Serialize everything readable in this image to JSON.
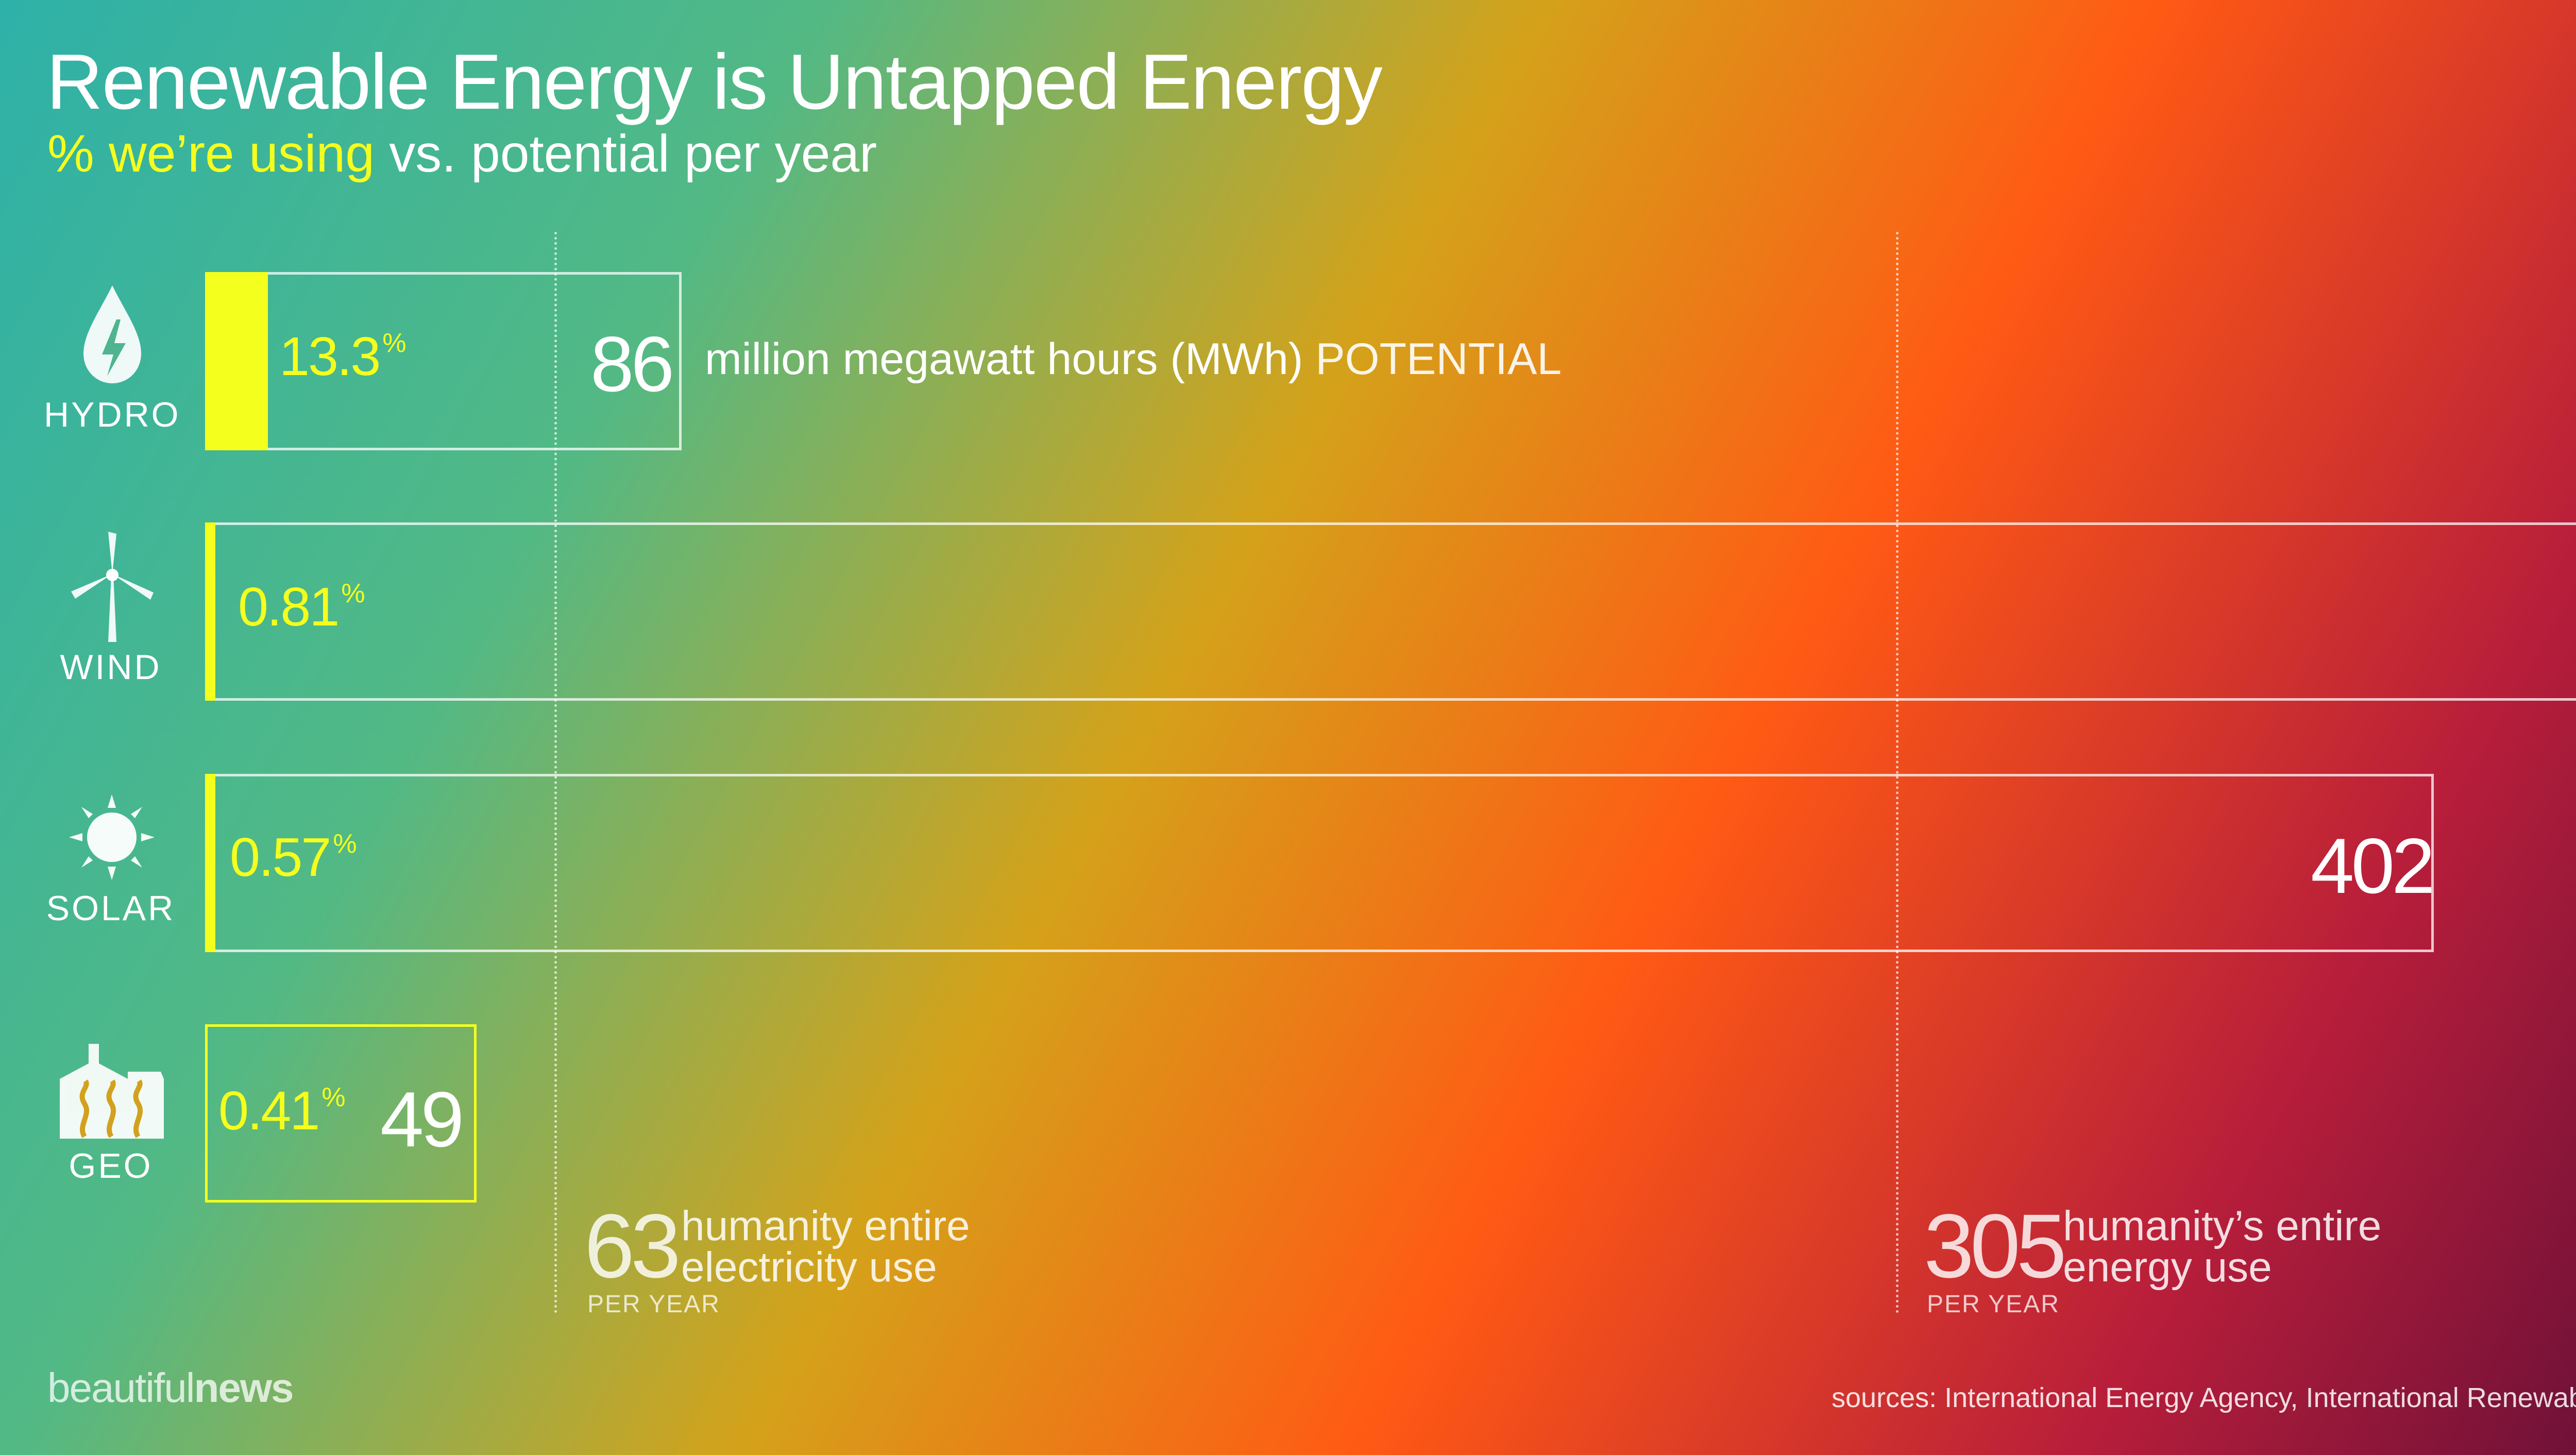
{
  "title": "Renewable Energy is Untapped Energy",
  "subtitle": {
    "highlight": "% we’re using",
    "rest": " vs. potential per year"
  },
  "colors": {
    "accent_yellow": "#f5ff1e",
    "bg_teal": "#2eb1a8",
    "bg_green": "#52b985",
    "bg_gold": "#d4a21a",
    "bg_orange": "#ff5a14",
    "bg_crimson": "#b81e3a",
    "bg_plum": "#6a1038"
  },
  "chart_data": {
    "type": "bar",
    "orientation": "horizontal",
    "unit_label": "million megawatt hours (MWh)",
    "unit_suffix": "POTENTIAL",
    "categories": [
      "HYDRO",
      "WIND",
      "SOLAR",
      "GEO"
    ],
    "icons": [
      "water-drop-bolt-icon",
      "wind-turbine-icon",
      "sun-icon",
      "geothermal-plant-icon"
    ],
    "series": [
      {
        "values": [
          86,
          null,
          402,
          49
        ],
        "value_labels": [
          "86",
          "",
          "402",
          "49"
        ]
      },
      {
        "values": [
          13.3,
          0.81,
          0.57,
          0.41
        ],
        "value_labels": [
          "13.3",
          "0.81",
          "0.57",
          "0.41"
        ],
        "unit": "%"
      }
    ],
    "reference_lines": [
      {
        "value": 63,
        "label_value": "63",
        "label_line1": "humanity entire",
        "label_line2": "electricity use",
        "period": "PER YEAR"
      },
      {
        "value": 305,
        "label_value": "305",
        "label_line1": "humanity’s entire",
        "label_line2": "energy use",
        "period": "PER YEAR"
      }
    ]
  },
  "footer": {
    "brand_light": "beautiful",
    "brand_bold": "news",
    "sources": "sources: International Energy Agency, International Renewable En"
  }
}
